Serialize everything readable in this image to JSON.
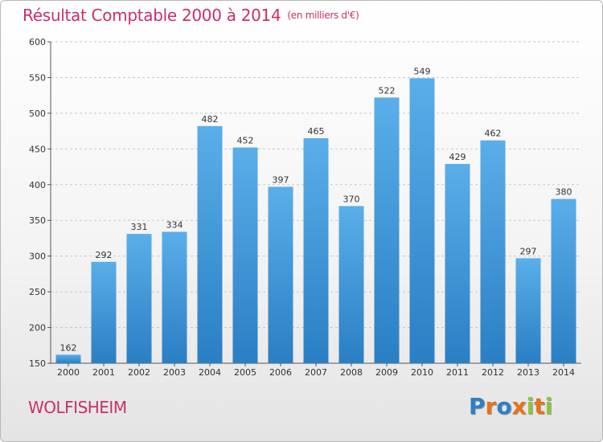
{
  "header": {
    "title": "Résultat Comptable 2000 à 2014",
    "subtitle": "(en milliers d'€)"
  },
  "footer": {
    "place_name": "WOLFISHEIM",
    "logo_text": "Proxiti"
  },
  "colors": {
    "title": "#c8306e",
    "bar_top": "#5aaee9",
    "bar_bottom": "#2a7fc4",
    "grid": "#c8c8c8",
    "logo_letters": [
      "#2f7fc8",
      "#e8731c",
      "#2f7fc8",
      "#e8731c",
      "#8cc63f",
      "#e8731c",
      "#8cc63f"
    ]
  },
  "chart_data": {
    "type": "bar",
    "categories": [
      "2000",
      "2001",
      "2002",
      "2003",
      "2004",
      "2005",
      "2006",
      "2007",
      "2008",
      "2009",
      "2010",
      "2011",
      "2012",
      "2013",
      "2014"
    ],
    "values": [
      162,
      292,
      331,
      334,
      482,
      452,
      397,
      465,
      370,
      522,
      549,
      429,
      462,
      297,
      380
    ],
    "title": "Résultat Comptable 2000 à 2014",
    "subtitle": "(en milliers d'€)",
    "xlabel": "",
    "ylabel": "",
    "ylim": [
      150,
      600
    ],
    "yticks": [
      150,
      200,
      250,
      300,
      350,
      400,
      450,
      500,
      550,
      600
    ],
    "grid": "horizontal-dashed",
    "legend": "none"
  }
}
